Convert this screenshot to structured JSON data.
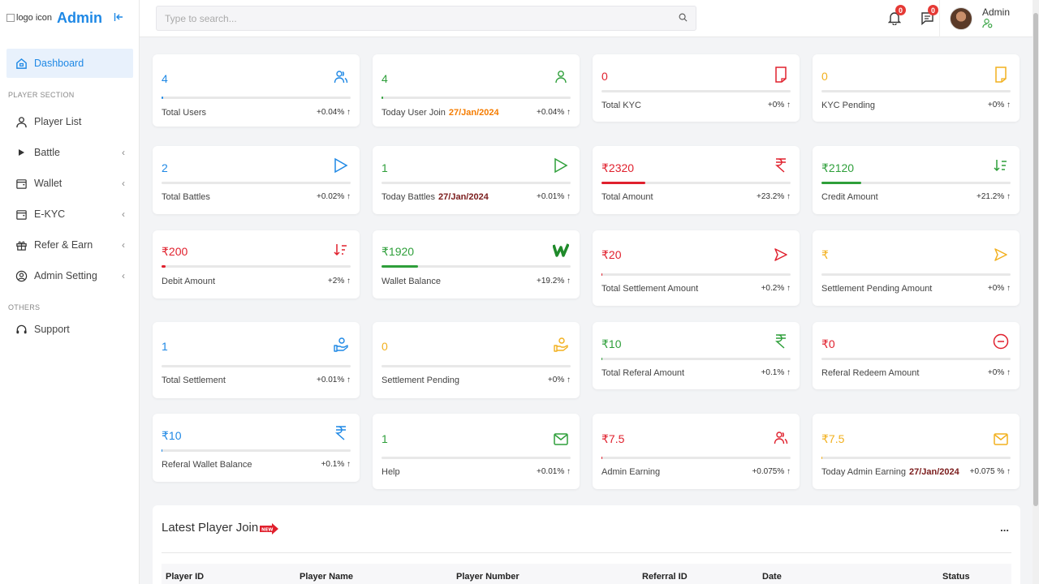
{
  "brand": {
    "logo_alt": "logo icon",
    "name": "Admin"
  },
  "sidebar": {
    "dashboard": "Dashboard",
    "section_player": "PLAYER SECTION",
    "items": [
      {
        "label": "Player List"
      },
      {
        "label": "Battle"
      },
      {
        "label": "Wallet"
      },
      {
        "label": "E-KYC"
      },
      {
        "label": "Refer & Earn"
      },
      {
        "label": "Admin Setting"
      }
    ],
    "section_others": "OTHERS",
    "support": "Support"
  },
  "topbar": {
    "search_placeholder": "Type to search...",
    "notif_count": "0",
    "msg_count": "0",
    "user_name": "Admin"
  },
  "cards": [
    {
      "value": "4",
      "label": "Total Users",
      "pct": "+0.04%",
      "date": ""
    },
    {
      "value": "4",
      "label": "Today User Join",
      "pct": "+0.04%",
      "date": "27/Jan/2024"
    },
    {
      "value": "0",
      "label": "Total KYC",
      "pct": "+0%",
      "date": ""
    },
    {
      "value": "0",
      "label": "KYC Pending",
      "pct": "+0%",
      "date": ""
    },
    {
      "value": "2",
      "label": "Total Battles",
      "pct": "+0.02%",
      "date": ""
    },
    {
      "value": "1",
      "label": "Today Battles",
      "pct": "+0.01%",
      "date": "27/Jan/2024"
    },
    {
      "value": "₹2320",
      "label": "Total Amount",
      "pct": "+23.2%",
      "date": ""
    },
    {
      "value": "₹2120",
      "label": "Credit Amount",
      "pct": "+21.2%",
      "date": ""
    },
    {
      "value": "₹200",
      "label": "Debit Amount",
      "pct": "+2%",
      "date": ""
    },
    {
      "value": "₹1920",
      "label": "Wallet Balance",
      "pct": "+19.2%",
      "date": ""
    },
    {
      "value": "₹20",
      "label": "Total Settlement Amount",
      "pct": "+0.2%",
      "date": ""
    },
    {
      "value": "₹",
      "label": "Settlement Pending Amount",
      "pct": "+0%",
      "date": ""
    },
    {
      "value": "1",
      "label": "Total Settlement",
      "pct": "+0.01%",
      "date": ""
    },
    {
      "value": "0",
      "label": "Settlement Pending",
      "pct": "+0%",
      "date": ""
    },
    {
      "value": "₹10",
      "label": "Total Referal Amount",
      "pct": "+0.1%",
      "date": ""
    },
    {
      "value": "₹0",
      "label": "Referal Redeem Amount",
      "pct": "+0%",
      "date": ""
    },
    {
      "value": "₹10",
      "label": "Referal Wallet Balance",
      "pct": "+0.1%",
      "date": ""
    },
    {
      "value": "1",
      "label": "Help",
      "pct": "+0.01%",
      "date": ""
    },
    {
      "value": "₹7.5",
      "label": "Admin Earning",
      "pct": "+0.075%",
      "date": ""
    },
    {
      "value": "₹7.5",
      "label": "Today Admin Earning",
      "pct": "+0.075 %",
      "date": "27/Jan/2024"
    }
  ],
  "latest": {
    "title": "Latest Player Join",
    "new_tag": "NEW",
    "more": "...",
    "columns": [
      "Player ID",
      "Player Name",
      "Player Number",
      "Referral ID",
      "Date",
      "Status"
    ]
  },
  "colors": {
    "accent": "#1e88e5",
    "green": "#2e9f3a",
    "red": "#e0202d",
    "yellow": "#f2b01e",
    "orange": "#f57c00"
  }
}
